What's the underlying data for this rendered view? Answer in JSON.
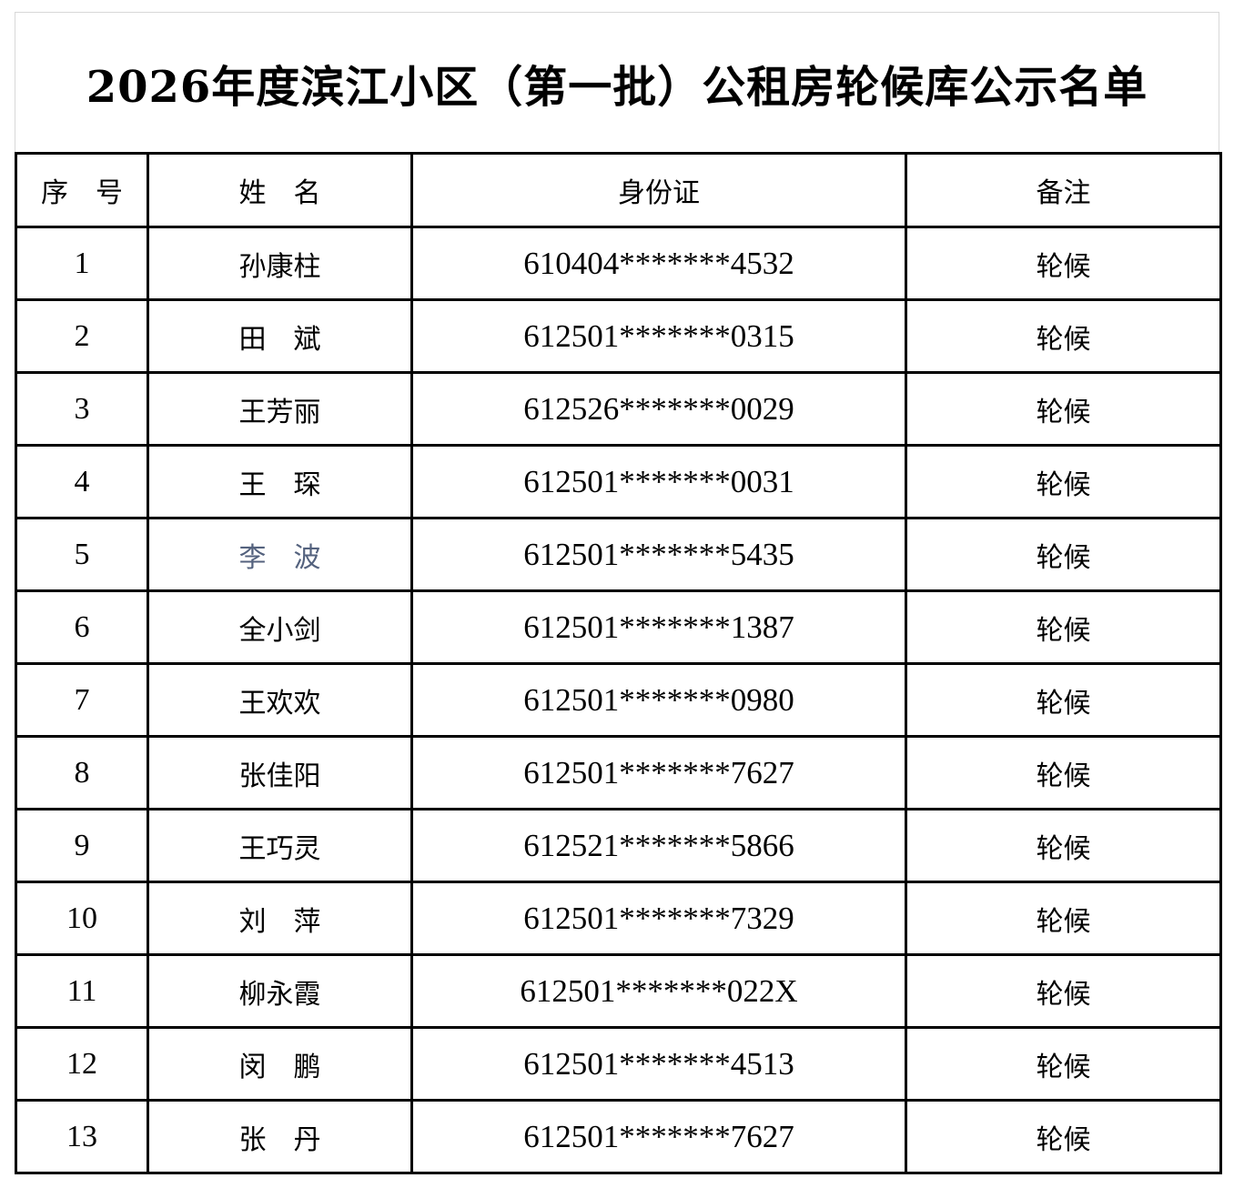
{
  "title": "2026年度滨江小区（第一批）公租房轮候库公示名单",
  "colors": {
    "text": "#000000",
    "table_border": "#000000",
    "title_cell_border": "#d8d8d8",
    "highlighted_name": "#54627e"
  },
  "table": {
    "columns": [
      "序　号",
      "姓　名",
      "身份证",
      "备注"
    ],
    "rows": [
      {
        "no": "1",
        "name": "孙康柱",
        "id": "610404*******4532",
        "remark": "轮候"
      },
      {
        "no": "2",
        "name": "田　斌",
        "id": "612501*******0315",
        "remark": "轮候"
      },
      {
        "no": "3",
        "name": "王芳丽",
        "id": "612526*******0029",
        "remark": "轮候"
      },
      {
        "no": "4",
        "name": "王　琛",
        "id": "612501*******0031",
        "remark": "轮候"
      },
      {
        "no": "5",
        "name": "李　波",
        "name_color": "#54627e",
        "id": "612501*******5435",
        "remark": "轮候"
      },
      {
        "no": "6",
        "name": "全小剑",
        "id": "612501*******1387",
        "remark": "轮候"
      },
      {
        "no": "7",
        "name": "王欢欢",
        "id": "612501*******0980",
        "remark": "轮候"
      },
      {
        "no": "8",
        "name": "张佳阳",
        "id": "612501*******7627",
        "remark": "轮候"
      },
      {
        "no": "9",
        "name": "王巧灵",
        "id": "612521*******5866",
        "remark": "轮候"
      },
      {
        "no": "10",
        "name": "刘　萍",
        "id": "612501*******7329",
        "remark": "轮候"
      },
      {
        "no": "11",
        "name": "柳永霞",
        "id": "612501*******022X",
        "remark": "轮候"
      },
      {
        "no": "12",
        "name": "闵　鹏",
        "id": "612501*******4513",
        "remark": "轮候"
      },
      {
        "no": "13",
        "name": "张　丹",
        "id": "612501*******7627",
        "remark": "轮候"
      }
    ]
  }
}
